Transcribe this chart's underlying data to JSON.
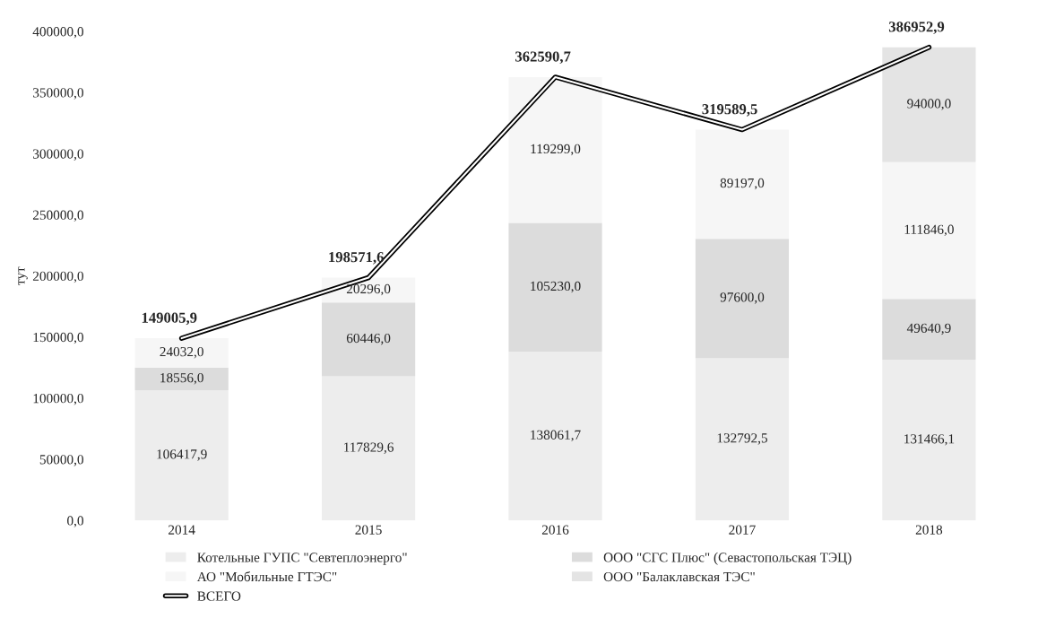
{
  "chart_data": {
    "type": "bar",
    "stacked": true,
    "ylabel": "тут",
    "categories": [
      "2014",
      "2015",
      "2016",
      "2017",
      "2018"
    ],
    "ylim": [
      0,
      400000
    ],
    "yticks": [
      {
        "value": 0,
        "label": "0,0"
      },
      {
        "value": 50000,
        "label": "50000,0"
      },
      {
        "value": 100000,
        "label": "100000,0"
      },
      {
        "value": 150000,
        "label": "150000,0"
      },
      {
        "value": 200000,
        "label": "200000,0"
      },
      {
        "value": 250000,
        "label": "250000,0"
      },
      {
        "value": 300000,
        "label": "300000,0"
      },
      {
        "value": 350000,
        "label": "350000,0"
      },
      {
        "value": 400000,
        "label": "400000,0"
      }
    ],
    "grid": false,
    "legend": "bottom",
    "series": [
      {
        "name": "Котельные ГУПС \"Севтеплоэнерго\"",
        "color": "#ededed",
        "values": [
          106417.9,
          117829.6,
          138061.7,
          132792.5,
          131466.1
        ],
        "value_labels": [
          "106417,9",
          "117829,6",
          "138061,7",
          "132792,5",
          "131466,1"
        ]
      },
      {
        "name": "ООО \"СГС Плюс\" (Севастопольская ТЭЦ)",
        "color": "#dcdcdc",
        "values": [
          18556.0,
          60446.0,
          105230.0,
          97600.0,
          49640.9
        ],
        "value_labels": [
          "18556,0",
          "60446,0",
          "105230,0",
          "97600,0",
          "49640,9"
        ]
      },
      {
        "name": "АО \"Мобильные ГТЭС\"",
        "color": "#f6f6f6",
        "values": [
          24032.0,
          20296.0,
          119299.0,
          89197.0,
          111846.0
        ],
        "value_labels": [
          "24032,0",
          "20296,0",
          "119299,0",
          "89197,0",
          "111846,0"
        ]
      },
      {
        "name": "ООО \"Балаклавская ТЭС\"",
        "color": "#e4e4e4",
        "values": [
          null,
          null,
          null,
          null,
          94000.0
        ],
        "value_labels": [
          null,
          null,
          null,
          null,
          "94000,0"
        ]
      },
      {
        "name": "ВСЕГО",
        "type": "line",
        "color": "#000000",
        "values": [
          149005.9,
          198571.6,
          362590.7,
          319589.5,
          386952.9
        ],
        "value_labels": [
          "149005,9",
          "198571,6",
          "362590,7",
          "319589,5",
          "386952,9"
        ]
      }
    ]
  }
}
